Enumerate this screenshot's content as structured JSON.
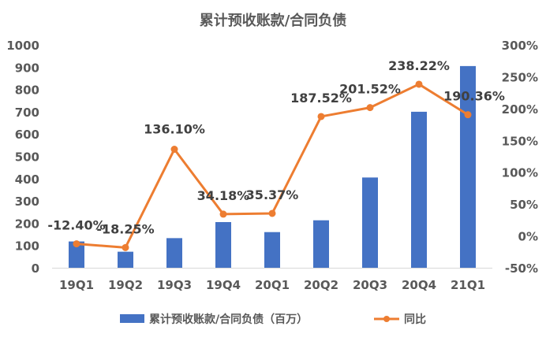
{
  "chart_data": {
    "type": "bar+line",
    "title": "累计预收账款/合同负债",
    "categories": [
      "19Q1",
      "19Q2",
      "19Q3",
      "19Q4",
      "20Q1",
      "20Q2",
      "20Q3",
      "20Q4",
      "21Q1"
    ],
    "series": [
      {
        "name": "累计预收账款/合同负债（百万）",
        "type": "bar",
        "axis": "left",
        "values": [
          118,
          72,
          133,
          205,
          160,
          213,
          405,
          700,
          905
        ]
      },
      {
        "name": "同比",
        "type": "line",
        "axis": "right",
        "values": [
          -12.4,
          -18.25,
          136.1,
          34.18,
          35.37,
          187.52,
          201.52,
          238.22,
          190.36
        ],
        "labels": [
          "-12.40%",
          "-18.25%",
          "136.10%",
          "34.18%",
          "35.37%",
          "187.52%",
          "201.52%",
          "238.22%",
          "190.36%"
        ]
      }
    ],
    "ylim_left": [
      0,
      1000
    ],
    "yticks_left": [
      "0",
      "100",
      "200",
      "300",
      "400",
      "500",
      "600",
      "700",
      "800",
      "900",
      "1000"
    ],
    "ylim_right": [
      -50,
      300
    ],
    "yticks_right": [
      "-50%",
      "0%",
      "50%",
      "100%",
      "150%",
      "200%",
      "250%",
      "300%"
    ],
    "grid": false,
    "legend_position": "bottom",
    "colors": {
      "bar": "#4472C4",
      "line": "#ED7D31",
      "text": "#595959",
      "label": "#404040"
    }
  }
}
